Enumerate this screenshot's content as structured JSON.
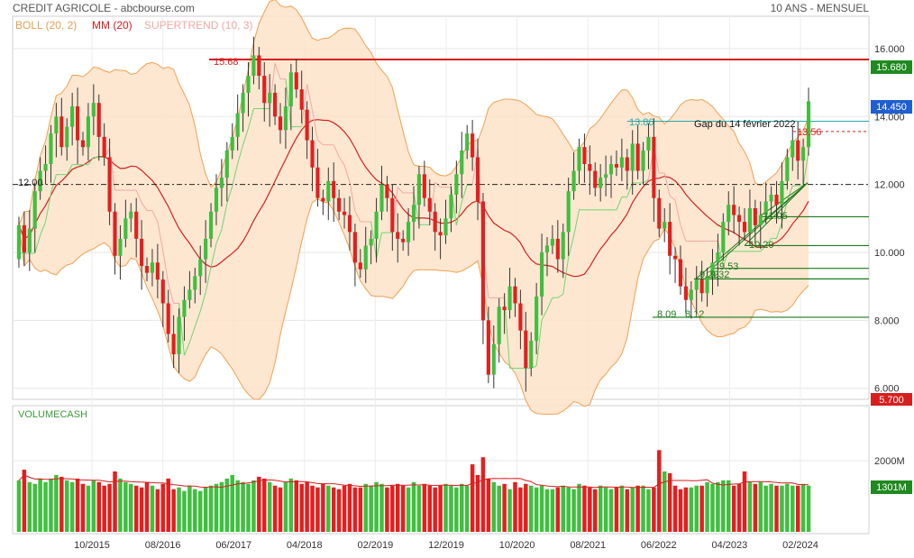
{
  "header": {
    "title": "CREDIT AGRICOLE - abcbourse.com",
    "period": "10 ANS - MENSUEL"
  },
  "legend": {
    "boll": "BOLL (20, 2)",
    "mm": "MM (20)",
    "supertrend": "SUPERTREND (10, 3)",
    "volume": "VOLUMECASH"
  },
  "colors": {
    "up": "#3fbf3f",
    "down": "#e31f1f",
    "boll_fill": "#fde3c9",
    "boll_line": "#f0a050",
    "mm": "#d81f1f",
    "supertrend_up": "#6ed66e",
    "supertrend_down": "#f3a6a6",
    "resistance": "#d81f1f",
    "support": "#1a7a1a",
    "gap": "#2aa8a8",
    "badge_blue": "#1f5fd1",
    "badge_green": "#1f8a1f",
    "badge_red": "#d81f1f"
  },
  "badges": {
    "resistance": "15.680",
    "last": "14.450",
    "low": "5.700",
    "volume": "1301M"
  },
  "annotations": {
    "resistance": "15.68",
    "pivot": "12.00",
    "gap_level": "13.86",
    "gap_text": "Gap du 14 février 2022",
    "gap_top": "13.56",
    "s1": "11.05",
    "s2": "10.20",
    "s3": "9.53",
    "s4": "9.22",
    "s5": "9.32",
    "s6": "8.09",
    "s7": "8.12"
  },
  "chart_data": {
    "type": "candlestick",
    "price_axis": {
      "ticks": [
        "16.000",
        "14.000",
        "12.000",
        "10.000",
        "8.000",
        "6.000"
      ],
      "range": [
        5.7,
        16.9
      ]
    },
    "volume_axis": {
      "ticks": [
        "2000M"
      ],
      "range": [
        0,
        3500
      ]
    },
    "x_labels": [
      "10/2015",
      "08/2016",
      "06/2017",
      "04/2018",
      "02/2019",
      "12/2019",
      "10/2020",
      "08/2021",
      "06/2022",
      "04/2023",
      "02/2024"
    ],
    "closes": [
      10.8,
      10.0,
      10.7,
      11.8,
      12.4,
      12.6,
      13.5,
      14.0,
      13.1,
      13.7,
      14.3,
      13.3,
      13.1,
      14.0,
      14.4,
      13.4,
      12.8,
      11.2,
      9.9,
      10.4,
      11.0,
      11.2,
      10.4,
      9.6,
      9.4,
      9.7,
      9.2,
      8.5,
      7.6,
      7.0,
      8.1,
      8.6,
      8.9,
      9.3,
      9.8,
      10.4,
      11.2,
      11.9,
      12.2,
      13.0,
      13.4,
      14.1,
      14.7,
      15.2,
      15.8,
      15.2,
      14.4,
      14.7,
      14.0,
      13.6,
      14.3,
      15.3,
      14.8,
      14.2,
      13.3,
      12.5,
      11.6,
      11.5,
      12.1,
      11.6,
      11.2,
      11.1,
      10.6,
      9.7,
      9.5,
      10.2,
      10.4,
      11.2,
      12.0,
      11.6,
      10.6,
      10.4,
      10.3,
      10.9,
      11.4,
      12.3,
      11.6,
      11.2,
      10.6,
      10.5,
      11.0,
      11.7,
      12.3,
      13.0,
      13.5,
      12.8,
      11.5,
      8.0,
      6.4,
      7.3,
      8.4,
      8.3,
      9.0,
      8.5,
      7.7,
      6.6,
      7.4,
      8.7,
      10.0,
      10.2,
      10.4,
      9.8,
      10.6,
      11.8,
      12.4,
      13.1,
      12.6,
      12.4,
      11.9,
      12.2,
      12.3,
      12.6,
      12.5,
      12.8,
      12.4,
      13.2,
      12.4,
      13.0,
      13.4,
      11.6,
      10.7,
      10.9,
      9.9,
      9.8,
      9.0,
      8.6,
      8.9,
      9.2,
      8.8,
      9.3,
      9.7,
      10.0,
      10.9,
      11.4,
      11.1,
      10.9,
      10.6,
      11.3,
      10.8,
      11.1,
      11.5,
      11.7,
      11.4,
      12.1,
      12.8,
      13.3,
      12.7,
      13.1,
      14.45
    ],
    "opens": [
      9.8,
      10.8,
      10.0,
      10.7,
      11.8,
      12.4,
      12.6,
      13.5,
      14.0,
      13.1,
      13.7,
      14.3,
      13.3,
      13.1,
      14.0,
      14.4,
      13.4,
      12.8,
      11.2,
      9.9,
      10.4,
      11.0,
      11.2,
      10.4,
      9.6,
      9.4,
      9.7,
      9.2,
      8.5,
      7.6,
      7.0,
      8.1,
      8.6,
      8.9,
      9.3,
      9.8,
      10.4,
      11.2,
      11.9,
      12.2,
      13.0,
      13.4,
      14.1,
      14.7,
      15.2,
      15.8,
      15.2,
      14.4,
      14.7,
      14.0,
      13.6,
      14.3,
      15.3,
      14.8,
      14.2,
      13.3,
      12.5,
      11.6,
      11.5,
      12.1,
      11.6,
      11.2,
      11.1,
      10.6,
      9.7,
      9.5,
      10.2,
      10.4,
      11.2,
      12.0,
      11.6,
      10.6,
      10.4,
      10.3,
      10.9,
      11.4,
      12.3,
      11.6,
      11.2,
      10.6,
      10.5,
      11.0,
      11.7,
      12.3,
      13.0,
      13.5,
      12.8,
      11.5,
      8.0,
      6.4,
      7.3,
      8.4,
      8.3,
      9.0,
      8.5,
      7.7,
      6.6,
      7.4,
      8.7,
      10.0,
      10.2,
      10.4,
      9.8,
      10.6,
      11.8,
      12.4,
      13.1,
      12.6,
      12.4,
      11.9,
      12.2,
      12.3,
      12.6,
      12.5,
      12.8,
      12.4,
      13.2,
      12.4,
      13.0,
      13.4,
      11.6,
      10.7,
      10.9,
      9.9,
      9.8,
      9.0,
      8.6,
      8.9,
      9.2,
      8.8,
      9.3,
      9.7,
      10.0,
      10.9,
      11.4,
      11.1,
      10.9,
      10.6,
      11.3,
      10.8,
      11.1,
      11.5,
      11.7,
      11.4,
      12.1,
      12.8,
      13.3,
      12.7,
      13.1
    ],
    "volumes": [
      1450,
      1750,
      1400,
      1350,
      1500,
      1400,
      1500,
      1600,
      1550,
      1450,
      1400,
      1500,
      1350,
      1300,
      1450,
      1400,
      1300,
      1350,
      1700,
      1500,
      1400,
      1350,
      1300,
      1250,
      1400,
      1300,
      1200,
      1350,
      1500,
      1200,
      1250,
      1150,
      1300,
      1200,
      1150,
      1250,
      1300,
      1350,
      1400,
      1500,
      1600,
      1450,
      1400,
      1350,
      1450,
      1550,
      1500,
      1400,
      1300,
      1250,
      1400,
      1500,
      1450,
      1350,
      1400,
      1300,
      1250,
      1350,
      1300,
      1250,
      1200,
      1300,
      1350,
      1250,
      1250,
      1350,
      1300,
      1400,
      1350,
      1250,
      1300,
      1350,
      1300,
      1250,
      1400,
      1300,
      1350,
      1300,
      1250,
      1300,
      1350,
      1300,
      1250,
      1350,
      1300,
      1900,
      1600,
      2100,
      1500,
      1400,
      1300,
      1350,
      1200,
      1400,
      1250,
      1350,
      1300,
      1250,
      1300,
      1200,
      1200,
      1250,
      1300,
      1250,
      1200,
      1350,
      1300,
      1250,
      1200,
      1300,
      1250,
      1200,
      1250,
      1300,
      1200,
      1250,
      1300,
      1300,
      1200,
      1250,
      2300,
      1700,
      1650,
      1300,
      1200,
      1250,
      1250,
      1300,
      1300,
      1400,
      1350,
      1400,
      1450,
      1450,
      1300,
      1350,
      1700,
      1400,
      1350,
      1400,
      1300,
      1350,
      1300,
      1300,
      1350,
      1300,
      1300,
      1350,
      1301
    ],
    "bollinger": {
      "period": 20,
      "stddev": 2
    },
    "moving_average": {
      "period": 20
    },
    "supertrend": {
      "period": 10,
      "multiplier": 3
    },
    "levels": [
      {
        "value": 15.68,
        "kind": "resistance"
      },
      {
        "value": 12.0,
        "kind": "pivot"
      },
      {
        "value": 13.86,
        "kind": "gap"
      },
      {
        "value": 13.56,
        "kind": "gap"
      },
      {
        "value": 11.05,
        "kind": "support"
      },
      {
        "value": 10.2,
        "kind": "support"
      },
      {
        "value": 9.53,
        "kind": "support"
      },
      {
        "value": 9.22,
        "kind": "support"
      },
      {
        "value": 8.09,
        "kind": "support"
      }
    ]
  }
}
